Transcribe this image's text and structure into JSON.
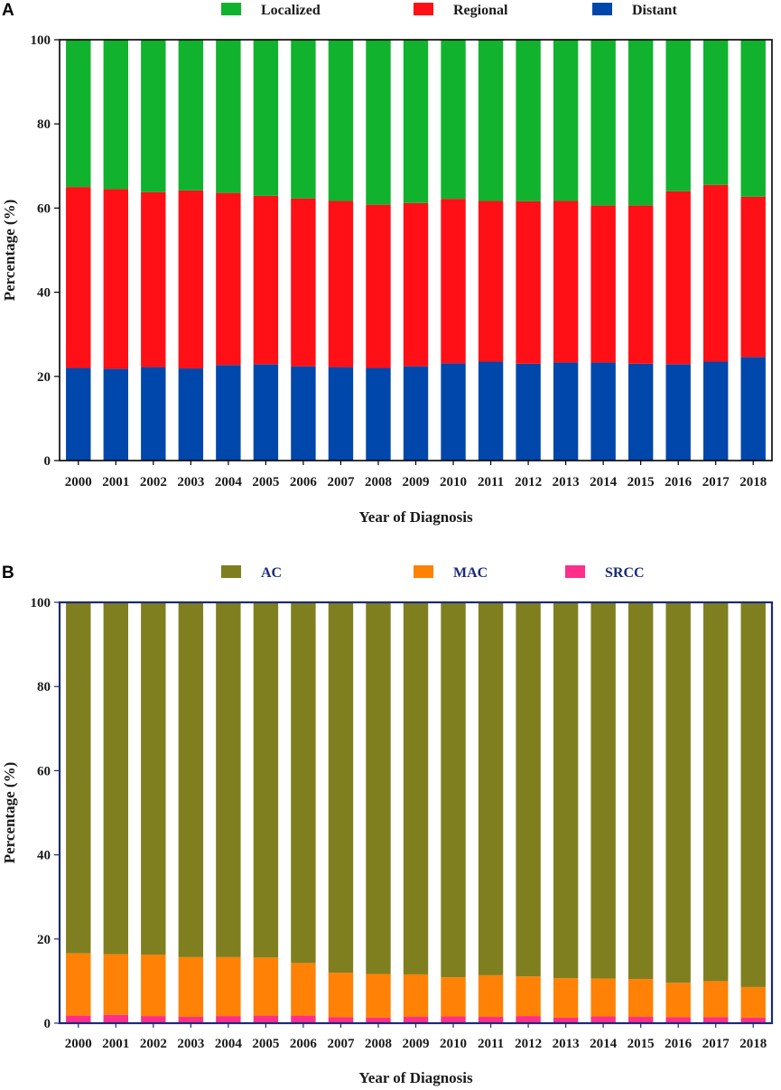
{
  "chart_data": [
    {
      "type": "bar",
      "stacked": true,
      "panel_label": "A",
      "title": "",
      "xlabel": "Year of Diagnosis",
      "ylabel": "Percentage (%)",
      "ylim": [
        0,
        100
      ],
      "yticks": [
        "0",
        "20",
        "40",
        "60",
        "80",
        "100"
      ],
      "legend_placement": "top-center",
      "frame_color": "#000000",
      "legend_text_color": "#1a1a1a",
      "categories": [
        "2000",
        "2001",
        "2002",
        "2003",
        "2004",
        "2005",
        "2006",
        "2007",
        "2008",
        "2009",
        "2010",
        "2011",
        "2012",
        "2013",
        "2014",
        "2015",
        "2016",
        "2017",
        "2018"
      ],
      "series": [
        {
          "name": "Distant",
          "color": "#0047AB",
          "values": [
            22.0,
            21.8,
            22.2,
            21.9,
            22.7,
            22.9,
            22.4,
            22.2,
            22.0,
            22.4,
            23.1,
            23.5,
            23.0,
            23.3,
            23.3,
            23.0,
            22.9,
            23.5,
            24.6
          ]
        },
        {
          "name": "Regional",
          "color": "#FF1016",
          "values": [
            43.0,
            42.7,
            41.6,
            42.3,
            40.9,
            40.0,
            39.9,
            39.5,
            38.8,
            38.8,
            39.1,
            38.2,
            38.6,
            38.4,
            37.3,
            37.6,
            41.1,
            42.0,
            38.1
          ]
        },
        {
          "name": "Localized",
          "color": "#11B22E",
          "values": [
            35.0,
            35.5,
            36.2,
            35.8,
            36.4,
            37.1,
            37.7,
            38.3,
            39.2,
            38.8,
            37.8,
            38.3,
            38.4,
            38.3,
            39.4,
            39.4,
            36.0,
            34.5,
            37.3
          ]
        }
      ],
      "legend_order": [
        "Localized",
        "Regional",
        "Distant"
      ]
    },
    {
      "type": "bar",
      "stacked": true,
      "panel_label": "B",
      "title": "",
      "xlabel": "Year of Diagnosis",
      "ylabel": "Percentage (%)",
      "ylim": [
        0,
        100
      ],
      "yticks": [
        "0",
        "20",
        "40",
        "60",
        "80",
        "100"
      ],
      "legend_placement": "top-center",
      "frame_color": "#1B2A7A",
      "legend_text_color": "#1B2A7A",
      "categories": [
        "2000",
        "2001",
        "2002",
        "2003",
        "2004",
        "2005",
        "2006",
        "2007",
        "2008",
        "2009",
        "2010",
        "2011",
        "2012",
        "2013",
        "2014",
        "2015",
        "2016",
        "2017",
        "2018"
      ],
      "series": [
        {
          "name": "SRCC",
          "color": "#FF2E8B",
          "values": [
            1.8,
            2.0,
            1.7,
            1.5,
            1.7,
            1.8,
            1.8,
            1.4,
            1.3,
            1.5,
            1.6,
            1.5,
            1.7,
            1.3,
            1.6,
            1.5,
            1.4,
            1.4,
            1.3
          ]
        },
        {
          "name": "MAC",
          "color": "#FF8106",
          "values": [
            14.8,
            14.4,
            14.6,
            14.2,
            14.0,
            13.8,
            12.5,
            10.6,
            10.4,
            10.1,
            9.3,
            9.9,
            9.4,
            9.4,
            9.0,
            9.0,
            8.2,
            8.6,
            7.3
          ]
        },
        {
          "name": "AC",
          "color": "#7F7F20",
          "values": [
            83.4,
            83.6,
            83.7,
            84.3,
            84.3,
            84.4,
            85.7,
            88.0,
            88.3,
            88.4,
            89.1,
            88.6,
            88.9,
            89.3,
            89.4,
            89.5,
            90.4,
            90.0,
            91.4
          ]
        }
      ],
      "legend_order": [
        "AC",
        "MAC",
        "SRCC"
      ]
    }
  ]
}
